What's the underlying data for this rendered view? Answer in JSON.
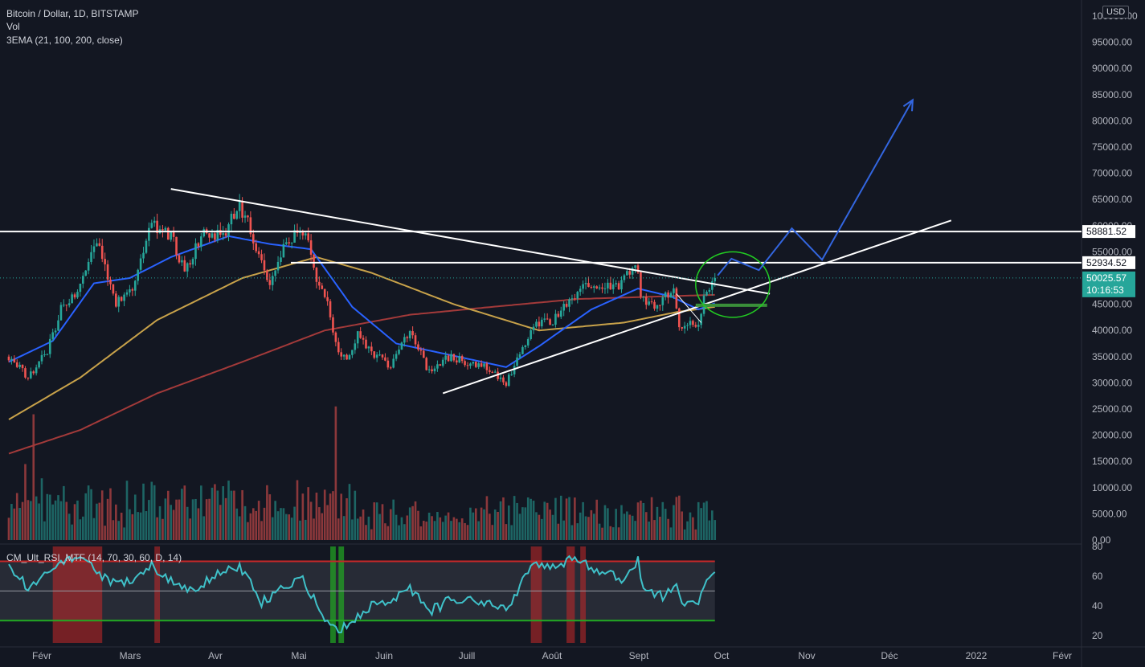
{
  "header": {
    "symbol_line": "Bitcoin / Dollar, 1D, BITSTAMP",
    "volume_label": "Vol",
    "ema_label": "3EMA (21, 100, 200, close)",
    "currency": "USD"
  },
  "colors": {
    "background": "#131722",
    "up": "#26a69a",
    "down": "#ef5350",
    "ema21": "#2962ff",
    "ema100": "#c8a24a",
    "ema200": "#a33a3a",
    "trendline": "#ffffff",
    "forecast": "#3366e0",
    "circle": "#22cc22",
    "rsi_line": "#3fc1c9",
    "rsi_over": "#c62828",
    "rsi_under": "#22aa22",
    "label_bg": "#26a69a"
  },
  "chart_data": {
    "type": "candlestick",
    "title": "Bitcoin / Dollar, 1D, BITSTAMP",
    "y_ticks": [
      "100000.00",
      "95000.00",
      "90000.00",
      "85000.00",
      "80000.00",
      "75000.00",
      "70000.00",
      "65000.00",
      "60000.00",
      "55000.00",
      "50000.00",
      "45000.00",
      "40000.00",
      "35000.00",
      "30000.00",
      "25000.00",
      "20000.00",
      "15000.00",
      "10000.00",
      "5000.00",
      "0.00"
    ],
    "x_ticks": [
      "Févr",
      "Mars",
      "Avr",
      "Mai",
      "Juin",
      "Juill",
      "Août",
      "Sept",
      "Oct",
      "Nov",
      "Déc",
      "2022",
      "Févr"
    ],
    "price_range": [
      0,
      100000
    ],
    "price_key_points": [
      [
        "2021-01-20",
        35000
      ],
      [
        "2021-01-27",
        31000
      ],
      [
        "2021-02-03",
        36000
      ],
      [
        "2021-02-08",
        44000
      ],
      [
        "2021-02-14",
        48000
      ],
      [
        "2021-02-21",
        57000
      ],
      [
        "2021-02-28",
        45000
      ],
      [
        "2021-03-06",
        48000
      ],
      [
        "2021-03-13",
        60000
      ],
      [
        "2021-03-20",
        58000
      ],
      [
        "2021-03-25",
        51000
      ],
      [
        "2021-04-01",
        59000
      ],
      [
        "2021-04-08",
        58000
      ],
      [
        "2021-04-14",
        64000
      ],
      [
        "2021-04-18",
        59000
      ],
      [
        "2021-04-25",
        49000
      ],
      [
        "2021-05-01",
        57000
      ],
      [
        "2021-05-08",
        59000
      ],
      [
        "2021-05-12",
        49000
      ],
      [
        "2021-05-16",
        45000
      ],
      [
        "2021-05-19",
        37000
      ],
      [
        "2021-05-23",
        34000
      ],
      [
        "2021-05-27",
        39000
      ],
      [
        "2021-06-01",
        36000
      ],
      [
        "2021-06-08",
        33000
      ],
      [
        "2021-06-15",
        40000
      ],
      [
        "2021-06-22",
        32000
      ],
      [
        "2021-06-28",
        35000
      ],
      [
        "2021-07-06",
        34000
      ],
      [
        "2021-07-13",
        33000
      ],
      [
        "2021-07-20",
        30000
      ],
      [
        "2021-07-26",
        37000
      ],
      [
        "2021-07-31",
        41000
      ],
      [
        "2021-08-06",
        42000
      ],
      [
        "2021-08-14",
        47000
      ],
      [
        "2021-08-21",
        49000
      ],
      [
        "2021-08-28",
        48000
      ],
      [
        "2021-09-06",
        52000
      ],
      [
        "2021-09-07",
        46000
      ],
      [
        "2021-09-13",
        45000
      ],
      [
        "2021-09-19",
        48000
      ],
      [
        "2021-09-21",
        41000
      ],
      [
        "2021-09-28",
        41000
      ],
      [
        "2021-10-01",
        48000
      ],
      [
        "2021-10-04",
        50025
      ]
    ],
    "ema21_key_points": [
      [
        "2021-01-20",
        34000
      ],
      [
        "2021-02-05",
        38000
      ],
      [
        "2021-02-20",
        49000
      ],
      [
        "2021-03-05",
        50000
      ],
      [
        "2021-03-20",
        54000
      ],
      [
        "2021-04-10",
        58000
      ],
      [
        "2021-04-25",
        56500
      ],
      [
        "2021-05-10",
        55500
      ],
      [
        "2021-05-25",
        44500
      ],
      [
        "2021-06-10",
        37500
      ],
      [
        "2021-06-28",
        35500
      ],
      [
        "2021-07-20",
        33000
      ],
      [
        "2021-08-01",
        37000
      ],
      [
        "2021-08-20",
        44000
      ],
      [
        "2021-09-06",
        48000
      ],
      [
        "2021-09-18",
        46500
      ],
      [
        "2021-09-28",
        44000
      ],
      [
        "2021-10-04",
        45200
      ]
    ],
    "ema100_key_points": [
      [
        "2021-01-20",
        23000
      ],
      [
        "2021-02-15",
        31000
      ],
      [
        "2021-03-15",
        42000
      ],
      [
        "2021-04-15",
        50000
      ],
      [
        "2021-05-12",
        54000
      ],
      [
        "2021-06-01",
        51000
      ],
      [
        "2021-07-01",
        45000
      ],
      [
        "2021-08-01",
        40000
      ],
      [
        "2021-09-01",
        41500
      ],
      [
        "2021-09-20",
        43500
      ],
      [
        "2021-10-04",
        44500
      ]
    ],
    "ema200_key_points": [
      [
        "2021-01-20",
        16500
      ],
      [
        "2021-02-15",
        21000
      ],
      [
        "2021-03-15",
        28000
      ],
      [
        "2021-04-15",
        34000
      ],
      [
        "2021-05-15",
        40000
      ],
      [
        "2021-06-15",
        43000
      ],
      [
        "2021-07-15",
        44500
      ],
      [
        "2021-08-15",
        46000
      ],
      [
        "2021-09-15",
        46500
      ],
      [
        "2021-10-04",
        46800
      ]
    ],
    "volume_spikes": [
      [
        "2021-01-29",
        24000
      ],
      [
        "2021-01-26",
        14500
      ],
      [
        "2021-05-19",
        25500
      ]
    ],
    "price_labels": [
      {
        "name": "resistance-upper",
        "price": 58881.52,
        "text": "58881.52"
      },
      {
        "name": "resistance-lower",
        "price": 52934.52,
        "text": "52934.52"
      }
    ],
    "last_price": {
      "price": 50025.57,
      "text": "50025.57",
      "countdown": "10:16:53"
    },
    "rsi": {
      "title": "CM_Ult_RSI_MTF (14, 70, 30, 60, D, 14)",
      "y_ticks": [
        "80",
        "60",
        "40",
        "20"
      ],
      "range": [
        15,
        80
      ],
      "upper": 70,
      "lower": 30,
      "mid": 50,
      "key_points": [
        [
          "2021-01-20",
          67
        ],
        [
          "2021-01-27",
          52
        ],
        [
          "2021-02-03",
          63
        ],
        [
          "2021-02-10",
          72
        ],
        [
          "2021-02-17",
          71
        ],
        [
          "2021-02-24",
          58
        ],
        [
          "2021-03-03",
          55
        ],
        [
          "2021-03-13",
          67
        ],
        [
          "2021-03-20",
          56
        ],
        [
          "2021-03-26",
          50
        ],
        [
          "2021-04-05",
          60
        ],
        [
          "2021-04-14",
          67
        ],
        [
          "2021-04-22",
          42
        ],
        [
          "2021-05-01",
          55
        ],
        [
          "2021-05-07",
          58
        ],
        [
          "2021-05-13",
          38
        ],
        [
          "2021-05-19",
          23
        ],
        [
          "2021-05-23",
          28
        ],
        [
          "2021-06-01",
          40
        ],
        [
          "2021-06-10",
          45
        ],
        [
          "2021-06-15",
          52
        ],
        [
          "2021-06-22",
          36
        ],
        [
          "2021-07-01",
          45
        ],
        [
          "2021-07-15",
          42
        ],
        [
          "2021-07-20",
          37
        ],
        [
          "2021-07-30",
          70
        ],
        [
          "2021-08-06",
          65
        ],
        [
          "2021-08-14",
          72
        ],
        [
          "2021-08-21",
          64
        ],
        [
          "2021-09-01",
          58
        ],
        [
          "2021-09-06",
          70
        ],
        [
          "2021-09-08",
          50
        ],
        [
          "2021-09-15",
          46
        ],
        [
          "2021-09-20",
          55
        ],
        [
          "2021-09-22",
          40
        ],
        [
          "2021-09-28",
          42
        ],
        [
          "2021-10-01",
          57
        ],
        [
          "2021-10-04",
          61
        ]
      ],
      "overbought_zones": [
        [
          "2021-02-05",
          "2021-02-23"
        ],
        [
          "2021-03-14",
          "2021-03-16"
        ],
        [
          "2021-07-29",
          "2021-08-02"
        ],
        [
          "2021-08-11",
          "2021-08-14"
        ],
        [
          "2021-08-16",
          "2021-08-18"
        ]
      ],
      "oversold_zones": [
        [
          "2021-05-17",
          "2021-05-19"
        ],
        [
          "2021-05-20",
          "2021-05-22"
        ]
      ]
    },
    "drawings": {
      "descending_trendline": [
        [
          "2021-03-20",
          67000
        ],
        [
          "2021-10-24",
          47000
        ]
      ],
      "ascending_trendline": [
        [
          "2021-06-27",
          28000
        ],
        [
          "2021-12-29",
          61000
        ]
      ],
      "horizontal_upper": 58881.52,
      "horizontal_lower": 52934.52,
      "flag_level": 44800,
      "forecast_path": [
        [
          "2021-10-05",
          50500
        ],
        [
          "2021-10-10",
          53700
        ],
        [
          "2021-10-20",
          51500
        ],
        [
          "2021-11-01",
          59500
        ],
        [
          "2021-11-12",
          53500
        ],
        [
          "2021-12-15",
          84000
        ]
      ]
    }
  }
}
